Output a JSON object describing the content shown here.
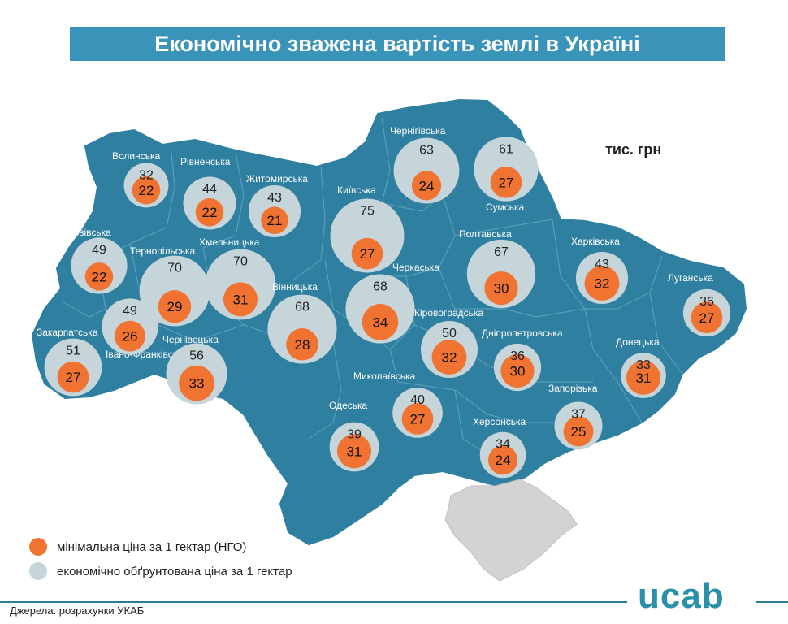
{
  "title": "Економічно зважена вартість землі в Україні",
  "unit": "тис. грн",
  "colors": {
    "region_fill": "#2e7fa0",
    "min_price": "#f07332",
    "econ_price": "#c6d5da",
    "crimea": "#d3d3d3"
  },
  "legend": {
    "min": "мінімальна ціна за 1 гектар (НГО)",
    "econ": "економічно обґрунтована ціна за 1 гектар"
  },
  "source": "Джерела: розрахунки УКАБ",
  "logo": "ucab",
  "regions": [
    {
      "name": "Волинська",
      "econ": 32,
      "min": 22
    },
    {
      "name": "Рівненська",
      "econ": 44,
      "min": 22
    },
    {
      "name": "Житомирська",
      "econ": 43,
      "min": 21
    },
    {
      "name": "Київська",
      "econ": 75,
      "min": 27
    },
    {
      "name": "Чернігівська",
      "econ": 63,
      "min": 24
    },
    {
      "name": "Сумська",
      "econ": 61,
      "min": 27
    },
    {
      "name": "Львівська",
      "econ": 49,
      "min": 22
    },
    {
      "name": "Тернопільська",
      "econ": 70,
      "min": 29
    },
    {
      "name": "Хмельницька",
      "econ": 70,
      "min": 31
    },
    {
      "name": "Вінницька",
      "econ": 68,
      "min": 28
    },
    {
      "name": "Черкаська",
      "econ": 68,
      "min": 34
    },
    {
      "name": "Полтавська",
      "econ": 67,
      "min": 30
    },
    {
      "name": "Харківська",
      "econ": 43,
      "min": 32
    },
    {
      "name": "Луганська",
      "econ": 36,
      "min": 27
    },
    {
      "name": "Закарпатська",
      "econ": 51,
      "min": 27
    },
    {
      "name": "Івано-Франківська",
      "econ": 49,
      "min": 26
    },
    {
      "name": "Чернівецька",
      "econ": 56,
      "min": 33
    },
    {
      "name": "Кіровоградська",
      "econ": 50,
      "min": 32
    },
    {
      "name": "Дніпропетровська",
      "econ": 36,
      "min": 30
    },
    {
      "name": "Донецька",
      "econ": 33,
      "min": 31
    },
    {
      "name": "Миколаївська",
      "econ": 40,
      "min": 27
    },
    {
      "name": "Запорізька",
      "econ": 37,
      "min": 25
    },
    {
      "name": "Одеська",
      "econ": 39,
      "min": 31
    },
    {
      "name": "Херсонська",
      "econ": 34,
      "min": 24
    }
  ]
}
